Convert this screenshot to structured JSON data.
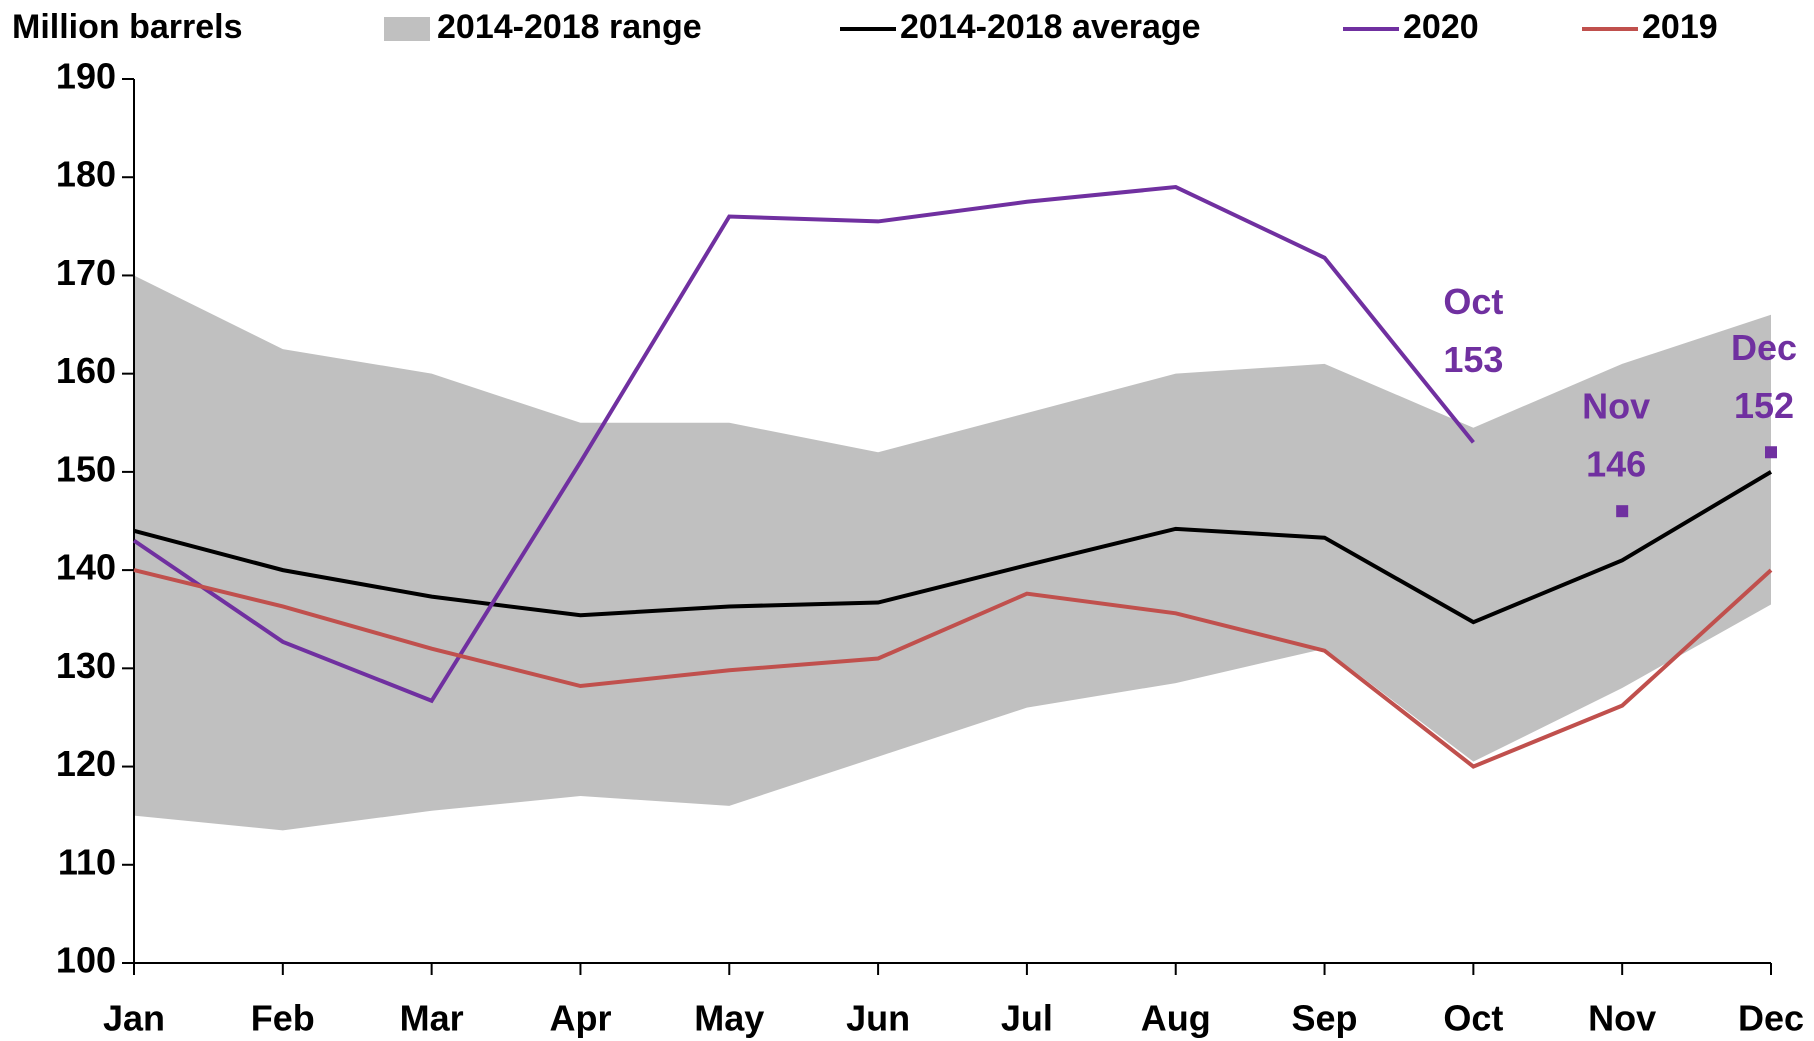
{
  "chart_data": {
    "type": "line",
    "y_label": "Million barrels",
    "categories": [
      "Jan",
      "Feb",
      "Mar",
      "Apr",
      "May",
      "Jun",
      "Jul",
      "Aug",
      "Sep",
      "Oct",
      "Nov",
      "Dec"
    ],
    "range": {
      "name": "2014-2018 range",
      "color": "#c0c0c0",
      "high": [
        170,
        162.5,
        160,
        155,
        155,
        152,
        156,
        160,
        161,
        154.5,
        161,
        166
      ],
      "low": [
        115,
        113.5,
        115.5,
        117,
        116,
        121,
        126,
        128.5,
        132,
        120.5,
        128,
        136.5
      ]
    },
    "series": [
      {
        "name": "2014-2018 average",
        "color": "#000000",
        "values": [
          144,
          140,
          137.3,
          135.4,
          136.3,
          136.7,
          140.5,
          144.2,
          143.3,
          134.7,
          141,
          150
        ]
      },
      {
        "name": "2020",
        "color": "#7030a0",
        "values": [
          143,
          132.7,
          126.7,
          151,
          176,
          175.5,
          177.5,
          179,
          171.8,
          153,
          null,
          null
        ]
      },
      {
        "name": "2019",
        "color": "#c0504d",
        "values": [
          140,
          136.3,
          132,
          128.2,
          129.8,
          131,
          137.6,
          135.6,
          131.8,
          120,
          126.2,
          140
        ]
      }
    ],
    "annotations": [
      {
        "month": "Oct",
        "value": 153,
        "marker": false
      },
      {
        "month": "Nov",
        "value": 146,
        "marker": true
      },
      {
        "month": "Dec",
        "value": 152,
        "marker": true
      }
    ],
    "annotation_color": "#7030a0",
    "ylim": [
      100,
      190
    ],
    "yticks": [
      100,
      110,
      120,
      130,
      140,
      150,
      160,
      170,
      180,
      190
    ]
  }
}
